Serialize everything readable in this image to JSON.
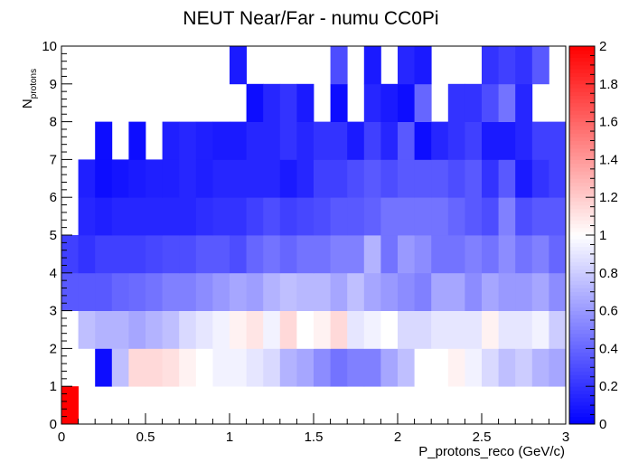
{
  "chart_data": {
    "type": "heatmap",
    "title": "NEUT Near/Far - numu CC0Pi",
    "xlabel": "P_protons_reco (GeV/c)",
    "ylabel_main": "N",
    "ylabel_sub": "protons",
    "xlim": [
      0,
      3
    ],
    "ylim": [
      0,
      10
    ],
    "x_bin_width": 0.1,
    "y_bin_width": 1,
    "x_tick_labels": [
      "0",
      "0.5",
      "1",
      "1.5",
      "2",
      "2.5",
      "3"
    ],
    "y_tick_labels": [
      "0",
      "1",
      "2",
      "3",
      "4",
      "5",
      "6",
      "7",
      "8",
      "9",
      "10"
    ],
    "colorbar": {
      "min": 0,
      "max": 2,
      "tick_labels": [
        "0",
        "0.2",
        "0.4",
        "0.6",
        "0.8",
        "1",
        "1.2",
        "1.4",
        "1.6",
        "1.8",
        "2"
      ],
      "colors": [
        "#0000ff",
        "#ffffff",
        "#ff0000"
      ]
    },
    "z_rows_note": "rows indexed by N_protons bin from 0 (bottom) to 9 (top); columns by momentum bin of width 0.1 from 0 to 3; null = empty bin",
    "z": [
      [
        2.0,
        null,
        null,
        null,
        null,
        null,
        null,
        null,
        null,
        null,
        null,
        null,
        null,
        null,
        null,
        null,
        null,
        null,
        null,
        null,
        null,
        null,
        null,
        null,
        null,
        null,
        null,
        null,
        null,
        null
      ],
      [
        null,
        null,
        0.05,
        0.75,
        1.15,
        1.15,
        1.12,
        1.05,
        1.0,
        0.95,
        0.95,
        0.9,
        0.85,
        0.7,
        0.65,
        0.55,
        0.45,
        0.5,
        0.5,
        0.65,
        0.75,
        1.0,
        1.0,
        1.05,
        0.95,
        0.85,
        0.75,
        0.8,
        0.7,
        0.65
      ],
      [
        null,
        0.75,
        0.7,
        0.7,
        0.65,
        0.7,
        0.75,
        0.85,
        0.9,
        0.95,
        1.05,
        1.1,
        0.95,
        1.15,
        1.0,
        1.05,
        1.15,
        0.9,
        0.95,
        1.0,
        0.85,
        0.85,
        0.9,
        0.9,
        0.9,
        1.05,
        0.9,
        0.9,
        0.95,
        0.8
      ],
      [
        0.35,
        0.35,
        0.35,
        0.4,
        0.42,
        0.45,
        0.5,
        0.5,
        0.55,
        0.6,
        0.65,
        0.62,
        0.7,
        0.75,
        0.72,
        0.72,
        0.65,
        0.75,
        0.65,
        0.6,
        0.55,
        0.5,
        0.65,
        0.65,
        0.55,
        0.65,
        0.6,
        0.6,
        0.65,
        0.55
      ],
      [
        0.25,
        0.2,
        0.25,
        0.25,
        0.25,
        0.28,
        0.3,
        0.3,
        0.35,
        0.35,
        0.3,
        0.4,
        0.45,
        0.4,
        0.45,
        0.45,
        0.5,
        0.5,
        0.7,
        0.45,
        0.6,
        0.55,
        0.45,
        0.45,
        0.5,
        0.45,
        0.55,
        0.45,
        0.5,
        0.4
      ],
      [
        null,
        0.15,
        0.12,
        0.15,
        0.15,
        0.15,
        0.15,
        0.15,
        0.18,
        0.2,
        0.2,
        0.25,
        0.3,
        0.25,
        0.28,
        0.3,
        0.35,
        0.35,
        0.38,
        0.45,
        0.45,
        0.45,
        0.45,
        0.4,
        0.35,
        0.3,
        0.5,
        0.3,
        0.35,
        0.35
      ],
      [
        null,
        0.12,
        0.05,
        0.08,
        0.1,
        0.12,
        0.12,
        0.15,
        0.12,
        0.15,
        0.15,
        0.15,
        0.15,
        0.1,
        0.15,
        0.25,
        0.25,
        0.3,
        0.35,
        0.3,
        0.35,
        0.35,
        0.35,
        0.3,
        0.35,
        0.2,
        0.35,
        0.1,
        0.2,
        0.25
      ],
      [
        null,
        null,
        0.05,
        null,
        0.05,
        null,
        0.12,
        0.15,
        0.12,
        0.1,
        0.1,
        0.15,
        0.15,
        0.2,
        0.15,
        0.2,
        0.2,
        0.1,
        0.25,
        0.15,
        0.35,
        0.05,
        0.15,
        0.2,
        0.25,
        0.1,
        0.1,
        0.15,
        0.25,
        0.25
      ],
      [
        null,
        null,
        null,
        null,
        null,
        null,
        null,
        null,
        null,
        null,
        null,
        0.05,
        0.15,
        0.2,
        0.1,
        null,
        0.05,
        null,
        0.15,
        0.1,
        0.05,
        0.4,
        null,
        0.2,
        0.2,
        0.3,
        0.45,
        0.15,
        null,
        null
      ],
      [
        null,
        null,
        null,
        null,
        null,
        null,
        null,
        null,
        null,
        null,
        0.1,
        null,
        null,
        null,
        null,
        null,
        0.3,
        null,
        0.1,
        null,
        0.15,
        0.1,
        null,
        null,
        null,
        0.2,
        0.25,
        0.2,
        0.35,
        null
      ]
    ]
  }
}
